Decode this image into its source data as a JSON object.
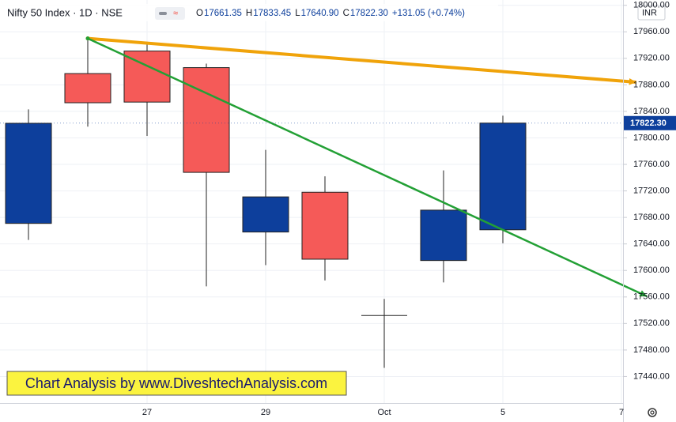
{
  "chart_data": {
    "type": "candlestick",
    "title": "Nifty 50 Index · 1D · NSE",
    "legend_values": [
      {
        "prefix": "O",
        "value": "17661.35"
      },
      {
        "prefix": "H",
        "value": "17833.45"
      },
      {
        "prefix": "L",
        "value": "17640.90"
      },
      {
        "prefix": "C",
        "value": "17822.30"
      }
    ],
    "change": "+131.05 (+0.74%)",
    "currency": "INR",
    "annotation": "Chart Analysis by www.DiveshtechAnalysis.com",
    "categories": [
      null,
      null,
      "27",
      null,
      "29",
      null,
      "Oct",
      null,
      "5",
      null,
      "7"
    ],
    "open": [
      17671,
      17897,
      17931,
      17906,
      17658,
      17718,
      17532,
      17615,
      17661.35,
      null,
      null
    ],
    "high": [
      17843,
      17948,
      17945,
      17912,
      17782,
      17742,
      17557,
      17751,
      17833.45,
      null,
      null
    ],
    "low": [
      17646,
      17817,
      17803,
      17576,
      17608,
      17585,
      17453,
      17582,
      17640.9,
      null,
      null
    ],
    "close": [
      17822,
      17853,
      17854,
      17748,
      17711,
      17617,
      17532,
      17691,
      17822.3,
      null,
      null
    ],
    "up_color": "#0d3f9c",
    "down_color": "#f55a58",
    "last_price": {
      "value": 17822.3,
      "label": "17822.30"
    },
    "trendlines": [
      {
        "color": "#f0a30a",
        "x": [
          1,
          10.25
        ],
        "y": [
          17950,
          17884
        ]
      },
      {
        "color": "#23a035",
        "x": [
          1,
          10.43
        ],
        "y": [
          17950,
          17561
        ]
      }
    ],
    "ylim": [
      17400,
      18008
    ],
    "yticks": [
      {
        "value": 17440,
        "label": "17440.00"
      },
      {
        "value": 17480,
        "label": "17480.00"
      },
      {
        "value": 17520,
        "label": "17520.00"
      },
      {
        "value": 17560,
        "label": "17560.00"
      },
      {
        "value": 17600,
        "label": "17600.00"
      },
      {
        "value": 17640,
        "label": "17640.00"
      },
      {
        "value": 17680,
        "label": "17680.00"
      },
      {
        "value": 17720,
        "label": "17720.00"
      },
      {
        "value": 17760,
        "label": "17760.00"
      },
      {
        "value": 17800,
        "label": "17800.00"
      },
      {
        "value": 17840,
        "label": "17840.00"
      },
      {
        "value": 17880,
        "label": "17880.00"
      },
      {
        "value": 17920,
        "label": "17920.00"
      },
      {
        "value": 17960,
        "label": "17960.00"
      },
      {
        "value": 18000,
        "label": "18000.00"
      }
    ],
    "grid": true
  }
}
